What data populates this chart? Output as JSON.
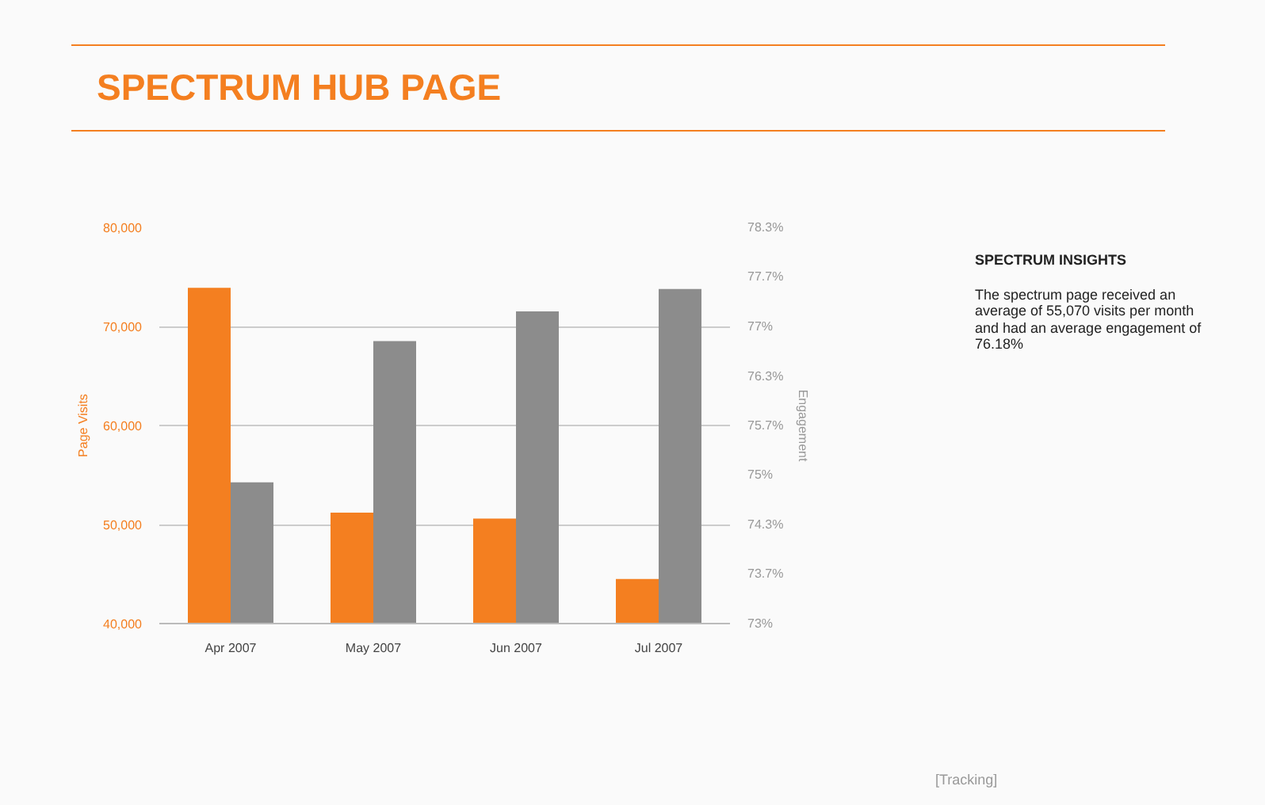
{
  "chart_data": {
    "type": "bar",
    "title": "SPECTRUM HUB PAGE",
    "categories": [
      "Apr 2007",
      "May 2007",
      "Jun 2007",
      "Jul 2007"
    ],
    "series": [
      {
        "color": "#f47f20",
        "values": [
          73900,
          51200,
          50600,
          44500
        ]
      },
      {
        "color": "#8c8c8c",
        "values": [
          74.9,
          76.8,
          77.2,
          77.5
        ],
        "axis": "y2"
      }
    ],
    "ylabel": "Page Visits",
    "y2label": "Engagement",
    "ylim": [
      40000,
      80000
    ],
    "yticks": [
      {
        "value": 40000,
        "label": "40,000"
      },
      {
        "value": 50000,
        "label": "50,000"
      },
      {
        "value": 60000,
        "label": "60,000"
      },
      {
        "value": 70000,
        "label": "70,000"
      },
      {
        "value": 80000,
        "label": "80,000"
      }
    ],
    "y2lim": [
      73,
      78.33
    ],
    "y2ticks": [
      {
        "value": 73,
        "label": "73%"
      },
      {
        "value": 73.67,
        "label": "73.7%"
      },
      {
        "value": 74.33,
        "label": "74.3%"
      },
      {
        "value": 75,
        "label": "75%"
      },
      {
        "value": 75.67,
        "label": "75.7%"
      },
      {
        "value": 76.33,
        "label": "76.3%"
      },
      {
        "value": 77,
        "label": "77%"
      },
      {
        "value": 77.67,
        "label": "77.7%"
      },
      {
        "value": 78.33,
        "label": "78.3%"
      }
    ],
    "grid": "y",
    "annotations": [
      "SPECTRUM INSIGHTS",
      "The spectrum page received an average of 55,070 visits per month and had an average engagement of 76.18%",
      "[Tracking]"
    ]
  }
}
